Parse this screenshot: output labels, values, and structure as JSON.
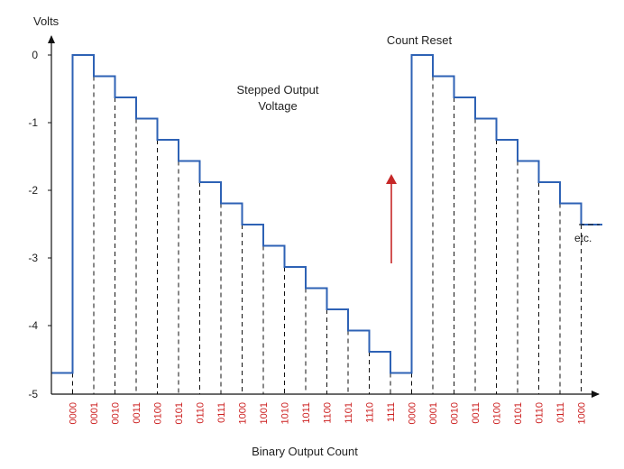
{
  "labels": {
    "y_axis": "Volts",
    "x_axis": "Binary Output Count",
    "waveform_line1": "Stepped Output",
    "waveform_line2": "Voltage",
    "count_reset": "Count Reset",
    "etc": "etc."
  },
  "y_ticks": [
    "0",
    "-1",
    "-2",
    "-3",
    "-4",
    "-5"
  ],
  "binary_codes": [
    "0000",
    "0001",
    "0010",
    "0011",
    "0100",
    "0101",
    "0110",
    "0111",
    "1000",
    "1001",
    "1010",
    "1011",
    "1100",
    "1101",
    "1110",
    "1111",
    "0000",
    "0001",
    "0010",
    "0011",
    "0100",
    "0101",
    "0110",
    "0111",
    "1000"
  ],
  "step_volts": [
    -4.6875,
    0,
    -0.3125,
    -0.625,
    -0.9375,
    -1.25,
    -1.5625,
    -1.875,
    -2.1875,
    -2.5,
    -2.8125,
    -3.125,
    -3.4375,
    -3.75,
    -4.0625,
    -4.375,
    -4.6875,
    0,
    -0.3125,
    -0.625,
    -0.9375,
    -1.25,
    -1.5625,
    -1.875,
    -2.1875,
    -2.5
  ],
  "colors": {
    "waveform": "#2e62b5",
    "codes": "#cc1f1f",
    "reset_arrow": "#c62828",
    "axis": "#111111",
    "dashes": "#111111"
  }
}
